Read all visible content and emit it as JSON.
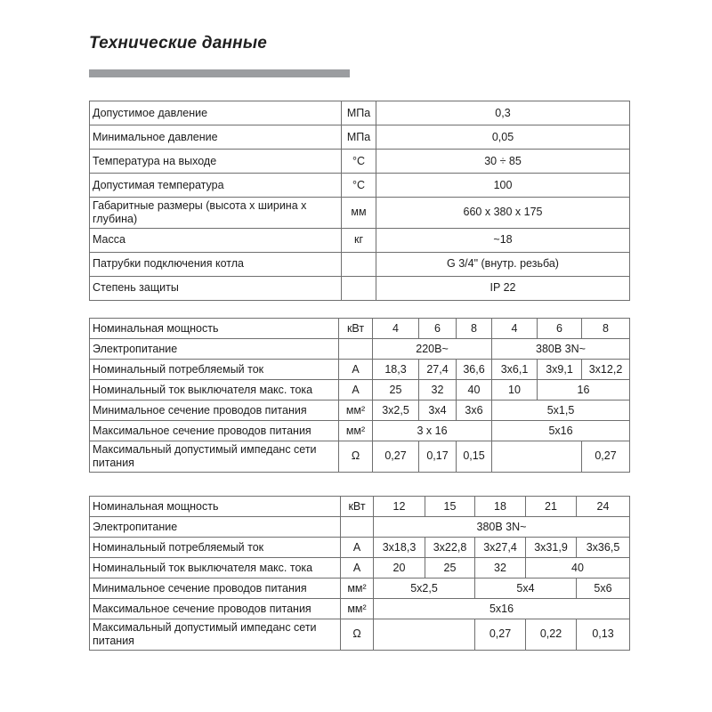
{
  "page": {
    "title": "Технические данные",
    "colors": {
      "accent_bar": "#9b9da0",
      "table_border": "#6f6f6f",
      "text": "#1c1c1c",
      "background": "#ffffff"
    }
  },
  "table1": {
    "rows": [
      {
        "label": "Допустимое давление",
        "unit": "МПа",
        "cells": [
          {
            "text": "0,3",
            "span": 1
          }
        ]
      },
      {
        "label": "Минимальное давление",
        "unit": "МПа",
        "cells": [
          {
            "text": "0,05",
            "span": 1
          }
        ]
      },
      {
        "label": "Температура на выходе",
        "unit": "°С",
        "cells": [
          {
            "text": "30 ÷ 85",
            "span": 1
          }
        ]
      },
      {
        "label": "Допустимая температура",
        "unit": "°С",
        "cells": [
          {
            "text": "100",
            "span": 1
          }
        ]
      },
      {
        "label": "Габаритные размеры (высота х ширина х глубина)",
        "unit": "мм",
        "cells": [
          {
            "text": "660 х 380 х 175",
            "span": 1
          }
        ]
      },
      {
        "label": "Масса",
        "unit": "кг",
        "cells": [
          {
            "text": "~18",
            "span": 1
          }
        ]
      },
      {
        "label": "Патрубки подключения котла",
        "unit": "",
        "cells": [
          {
            "text": "G 3/4\" (внутр. резьба)",
            "span": 1
          }
        ]
      },
      {
        "label": "Степень защиты",
        "unit": "",
        "cells": [
          {
            "text": "IP 22",
            "span": 1
          }
        ]
      }
    ]
  },
  "table2": {
    "rows": [
      {
        "label": "Номинальная мощность",
        "unit": "кВт",
        "cells": [
          {
            "text": "4",
            "span": 1
          },
          {
            "text": "6",
            "span": 1
          },
          {
            "text": "8",
            "span": 1
          },
          {
            "text": "4",
            "span": 1
          },
          {
            "text": "6",
            "span": 1
          },
          {
            "text": "8",
            "span": 1
          }
        ]
      },
      {
        "label": "Электропитание",
        "unit": "",
        "cells": [
          {
            "text": "220В~",
            "span": 3
          },
          {
            "text": "380В 3N~",
            "span": 3
          }
        ]
      },
      {
        "label": "Номинальный потребляемый ток",
        "unit": "А",
        "cells": [
          {
            "text": "18,3",
            "span": 1
          },
          {
            "text": "27,4",
            "span": 1
          },
          {
            "text": "36,6",
            "span": 1
          },
          {
            "text": "3х6,1",
            "span": 1
          },
          {
            "text": "3х9,1",
            "span": 1
          },
          {
            "text": "3х12,2",
            "span": 1
          }
        ]
      },
      {
        "label": "Номинальный ток выключателя макс. тока",
        "unit": "А",
        "cells": [
          {
            "text": "25",
            "span": 1
          },
          {
            "text": "32",
            "span": 1
          },
          {
            "text": "40",
            "span": 1
          },
          {
            "text": "10",
            "span": 1
          },
          {
            "text": "16",
            "span": 2
          }
        ]
      },
      {
        "label": "Минимальное сечение проводов питания",
        "unit": "мм²",
        "cells": [
          {
            "text": "3х2,5",
            "span": 1
          },
          {
            "text": "3х4",
            "span": 1
          },
          {
            "text": "3х6",
            "span": 1
          },
          {
            "text": "5х1,5",
            "span": 3
          }
        ]
      },
      {
        "label": "Максимальное сечение проводов питания",
        "unit": "мм²",
        "cells": [
          {
            "text": "3 х 16",
            "span": 3
          },
          {
            "text": "5х16",
            "span": 3
          }
        ]
      },
      {
        "label": "Максимальный допустимый импеданс сети питания",
        "unit": "Ω",
        "cells": [
          {
            "text": "0,27",
            "span": 1
          },
          {
            "text": "0,17",
            "span": 1
          },
          {
            "text": "0,15",
            "span": 1
          },
          {
            "text": "",
            "span": 2
          },
          {
            "text": "0,27",
            "span": 1
          }
        ]
      }
    ]
  },
  "table3": {
    "rows": [
      {
        "label": "Номинальная мощность",
        "unit": "кВт",
        "cells": [
          {
            "text": "12",
            "span": 1
          },
          {
            "text": "15",
            "span": 1
          },
          {
            "text": "18",
            "span": 1
          },
          {
            "text": "21",
            "span": 1
          },
          {
            "text": "24",
            "span": 1
          }
        ]
      },
      {
        "label": "Электропитание",
        "unit": "",
        "cells": [
          {
            "text": "380В 3N~",
            "span": 5
          }
        ]
      },
      {
        "label": "Номинальный потребляемый ток",
        "unit": "А",
        "cells": [
          {
            "text": "3х18,3",
            "span": 1
          },
          {
            "text": "3х22,8",
            "span": 1
          },
          {
            "text": "3х27,4",
            "span": 1
          },
          {
            "text": "3х31,9",
            "span": 1
          },
          {
            "text": "3х36,5",
            "span": 1
          }
        ]
      },
      {
        "label": "Номинальный ток выключателя макс. тока",
        "unit": "А",
        "cells": [
          {
            "text": "20",
            "span": 1
          },
          {
            "text": "25",
            "span": 1
          },
          {
            "text": "32",
            "span": 1
          },
          {
            "text": "40",
            "span": 2
          }
        ]
      },
      {
        "label": "Минимальное сечение проводов питания",
        "unit": "мм²",
        "cells": [
          {
            "text": "5х2,5",
            "span": 2
          },
          {
            "text": "5х4",
            "span": 2
          },
          {
            "text": "5х6",
            "span": 1
          }
        ]
      },
      {
        "label": "Максимальное сечение проводов питания",
        "unit": "мм²",
        "cells": [
          {
            "text": "5х16",
            "span": 5
          }
        ]
      },
      {
        "label": "Максимальный допустимый импеданс сети питания",
        "unit": "Ω",
        "cells": [
          {
            "text": "",
            "span": 2
          },
          {
            "text": "0,27",
            "span": 1
          },
          {
            "text": "0,22",
            "span": 1
          },
          {
            "text": "0,13",
            "span": 1
          }
        ]
      }
    ]
  }
}
